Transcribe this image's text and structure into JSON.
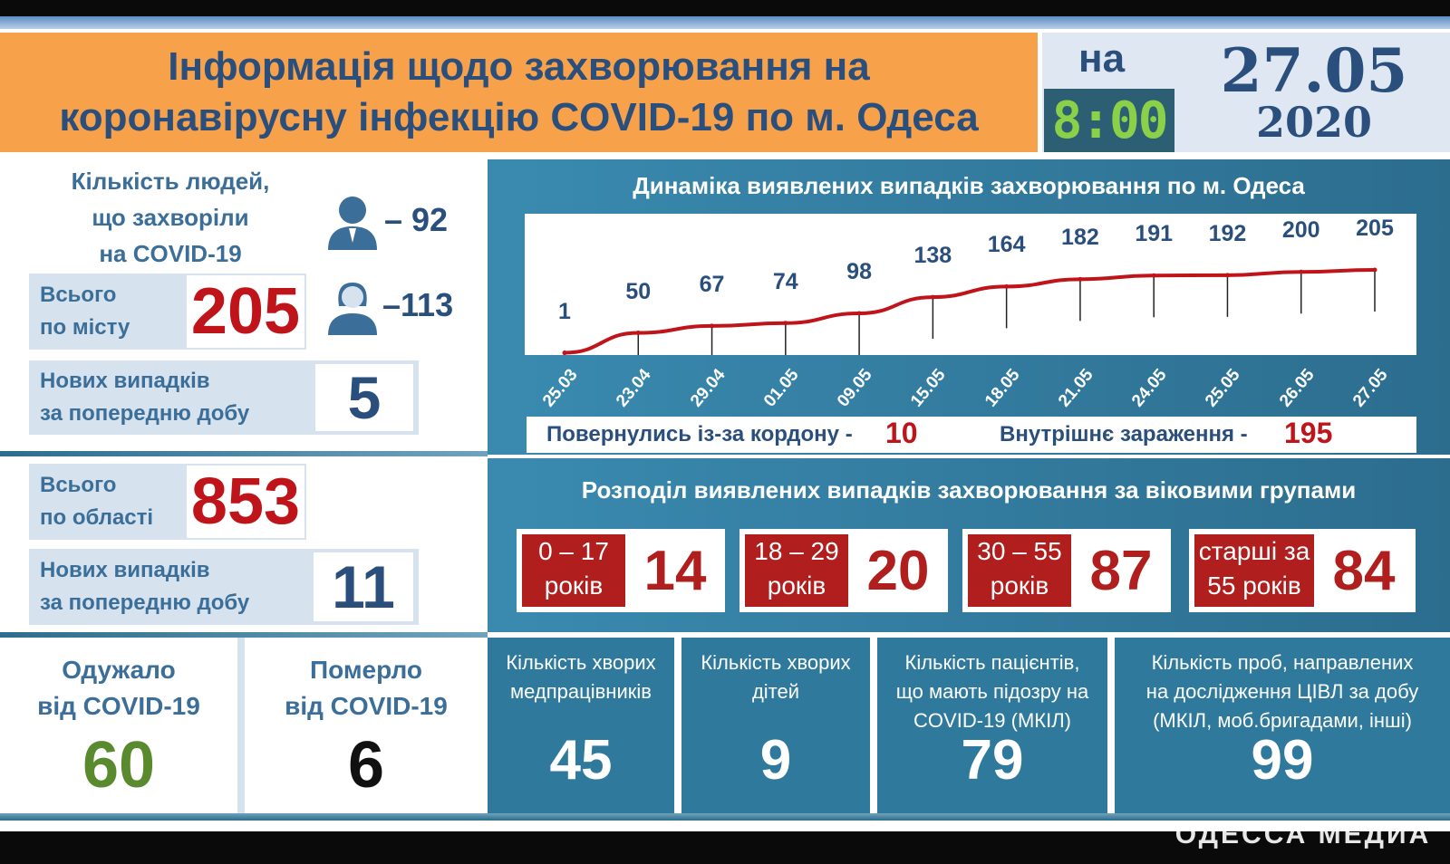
{
  "header": {
    "title_line1": "Інформація щодо захворювання на",
    "title_line2": "коронавірусну інфекцію COVID-19 по м. Одеса",
    "na": "на",
    "time": "8:00",
    "date": "27.05",
    "year": "2020"
  },
  "city": {
    "people_caption_l1": "Кількість людей,",
    "people_caption_l2": "що захворіли",
    "people_caption_l3": "на COVID-19",
    "male_count": "– 92",
    "female_count": "–113",
    "male_icon": "man-icon",
    "female_icon": "woman-icon",
    "total_label_l1": "Всього",
    "total_label_l2": "по місту",
    "total_value": "205",
    "new_label_l1": "Нових випадків",
    "new_label_l2": "за попередню добу",
    "new_value": "5"
  },
  "region": {
    "total_label_l1": "Всього",
    "total_label_l2": "по області",
    "total_value": "853",
    "new_label_l1": "Нових випадків",
    "new_label_l2": "за попередню добу",
    "new_value": "11"
  },
  "recovered": {
    "label_l1": "Одужало",
    "label_l2": "від COVID-19",
    "value": "60"
  },
  "died": {
    "label_l1": "Померло",
    "label_l2": "від COVID-19",
    "value": "6"
  },
  "dynamics": {
    "title": "Динаміка виявлених випадків захворювання по м. Одеса",
    "returned_label": "Повернулись із-за кордону -",
    "returned_value": "10",
    "internal_label": "Внутрішнє зараження -",
    "internal_value": "195"
  },
  "chart_data": {
    "type": "line",
    "title": "Динаміка виявлених випадків захворювання по м. Одеса",
    "categories": [
      "25.03",
      "23.04",
      "29.04",
      "01.05",
      "09.05",
      "15.05",
      "18.05",
      "21.05",
      "24.05",
      "25.05",
      "26.05",
      "27.05"
    ],
    "values": [
      1,
      50,
      67,
      74,
      98,
      138,
      164,
      182,
      191,
      192,
      200,
      205
    ],
    "ylim": [
      0,
      220
    ],
    "grid": false,
    "line_color": "#c0141b"
  },
  "ages": {
    "title": "Розподіл виявлених випадків захворювання за віковими групами",
    "groups": [
      {
        "range": "0 – 17",
        "unit": "років",
        "value": "14"
      },
      {
        "range": "18 – 29",
        "unit": "років",
        "value": "20"
      },
      {
        "range": "30 – 55",
        "unit": "років",
        "value": "87"
      },
      {
        "range": "старші за",
        "unit": "55 років",
        "value": "84"
      }
    ]
  },
  "stats": [
    {
      "cap_l1": "Кількість хворих",
      "cap_l2": "медпрацівників",
      "cap_l3": "",
      "value": "45"
    },
    {
      "cap_l1": "Кількість хворих",
      "cap_l2": "дітей",
      "cap_l3": "",
      "value": "9"
    },
    {
      "cap_l1": "Кількість пацієнтів,",
      "cap_l2": "що мають підозру на",
      "cap_l3": "COVID-19 (МКІЛ)",
      "value": "79"
    },
    {
      "cap_l1": "Кількість проб, направлених",
      "cap_l2": "на дослідження ЦІВЛ за добу",
      "cap_l3": "(МКІЛ, моб.бригадами, інші)",
      "value": "99"
    }
  ],
  "watermark": "ОДЕССА МЕДИА",
  "colors": {
    "orange": "#f7a24b",
    "navy": "#2b4f7c",
    "red": "#b01e1e",
    "green": "#5a8a2e",
    "teal": "#2f7a9c"
  }
}
